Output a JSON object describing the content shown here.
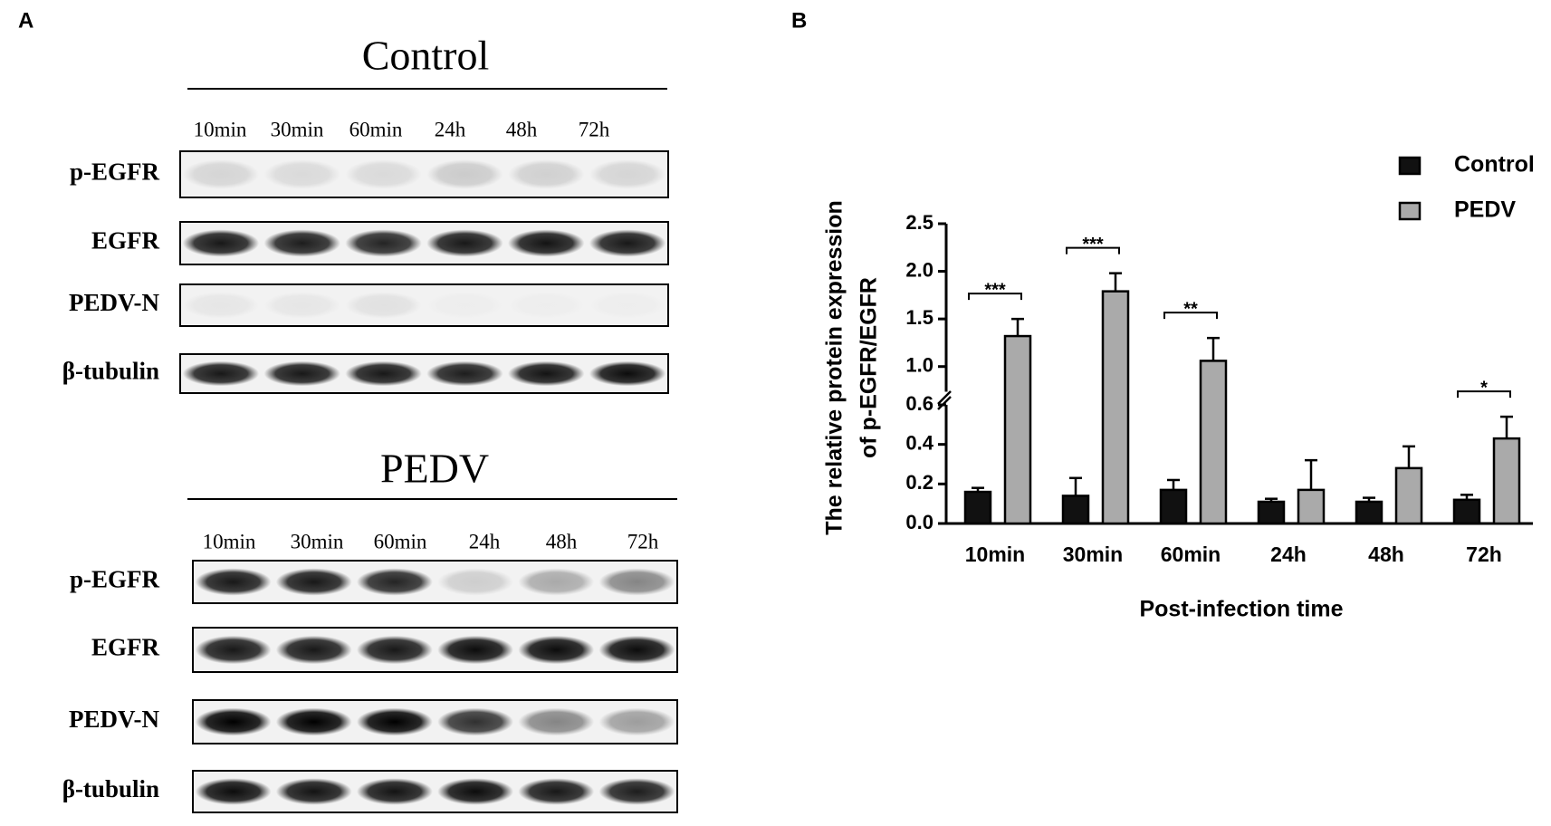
{
  "panel_a": {
    "label": "A",
    "blots": [
      {
        "title": "Control",
        "lanes": [
          "10min",
          "30min",
          "60min",
          "24h",
          "48h",
          "72h"
        ],
        "rows": [
          "p-EGFR",
          "EGFR",
          "PEDV-N",
          "β-tubulin"
        ]
      },
      {
        "title": "PEDV",
        "lanes": [
          "10min",
          "30min",
          "60min",
          "24h",
          "48h",
          "72h"
        ],
        "rows": [
          "p-EGFR",
          "EGFR",
          "PEDV-N",
          "β-tubulin"
        ]
      }
    ]
  },
  "chart_data": {
    "type": "bar",
    "panel_label": "B",
    "y_label": [
      "The relative protein expression",
      "of p-EGFR/EGFR"
    ],
    "x_label": "Post-infection time",
    "categories": [
      "10min",
      "30min",
      "60min",
      "24h",
      "48h",
      "72h"
    ],
    "series": [
      {
        "name": "Control",
        "color": "#111111",
        "values": [
          0.16,
          0.14,
          0.17,
          0.11,
          0.11,
          0.12
        ],
        "errors": [
          0.02,
          0.09,
          0.05,
          0.015,
          0.02,
          0.025
        ]
      },
      {
        "name": "PEDV",
        "color": "#aaaaaa",
        "values": [
          1.32,
          1.79,
          1.06,
          0.17,
          0.28,
          0.43
        ],
        "errors": [
          0.18,
          0.19,
          0.24,
          0.15,
          0.11,
          0.11
        ]
      }
    ],
    "significance": [
      "***",
      "***",
      "**",
      null,
      null,
      "*"
    ],
    "segments": [
      {
        "ylim": [
          0,
          0.6
        ],
        "yticks": [
          {
            "value": 0,
            "label": "0.0"
          },
          0.2,
          0.4,
          0.6
        ]
      },
      {
        "ylim": [
          0.75,
          2.5
        ],
        "yticks": [
          {
            "value": 1,
            "label": "1.0"
          },
          1.5,
          {
            "value": 2,
            "label": "2.0"
          },
          2.5
        ]
      }
    ],
    "legend": "top-right"
  }
}
